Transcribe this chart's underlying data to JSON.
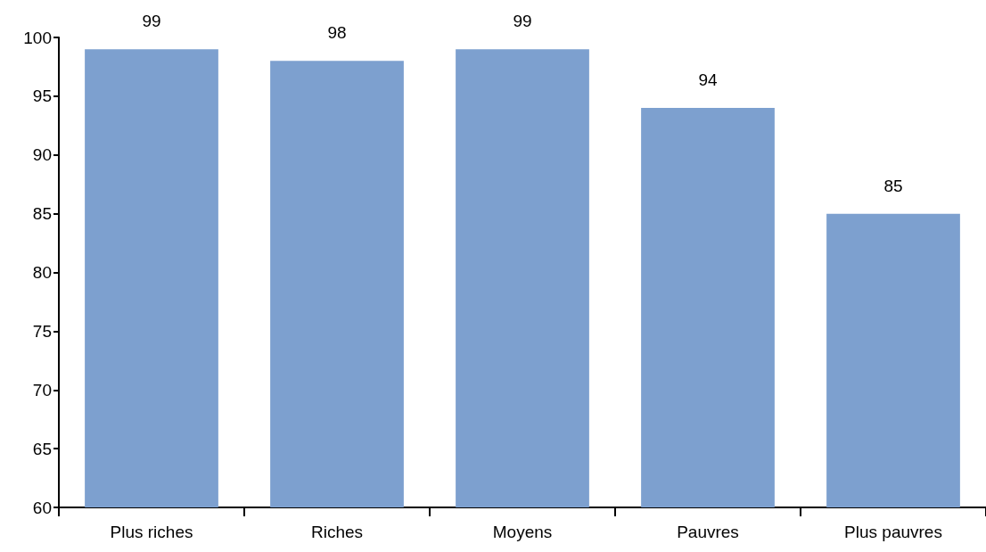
{
  "chart_data": {
    "type": "bar",
    "categories": [
      "Plus riches",
      "Riches",
      "Moyens",
      "Pauvres",
      "Plus pauvres"
    ],
    "values": [
      99,
      98,
      99,
      94,
      85
    ],
    "color": "#7da0cf",
    "data_labels": true,
    "grid": false,
    "ylim": [
      60,
      100
    ],
    "yticks": [
      60,
      65,
      70,
      75,
      80,
      85,
      90,
      95,
      100
    ]
  }
}
